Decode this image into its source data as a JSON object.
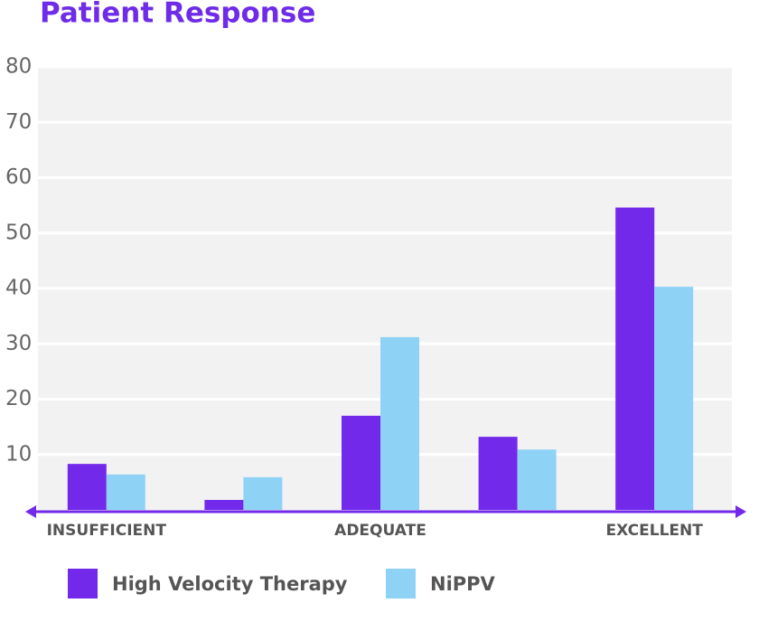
{
  "chart_data": {
    "type": "bar",
    "title": "Patient Response",
    "categories": [
      "INSUFFICIENT",
      null,
      "ADEQUATE",
      null,
      "EXCELLENT"
    ],
    "series": [
      {
        "name": "High Velocity Therapy",
        "color": "#7329ea",
        "values": [
          8.3,
          1.8,
          17.0,
          13.2,
          54.6
        ]
      },
      {
        "name": "NiPPV",
        "color": "#8ed3f5",
        "values": [
          6.4,
          5.9,
          31.2,
          10.9,
          40.3
        ]
      }
    ],
    "ylim": [
      0,
      80
    ],
    "yticks": [
      10,
      20,
      30,
      40,
      50,
      60,
      70,
      80
    ],
    "grid": true
  }
}
